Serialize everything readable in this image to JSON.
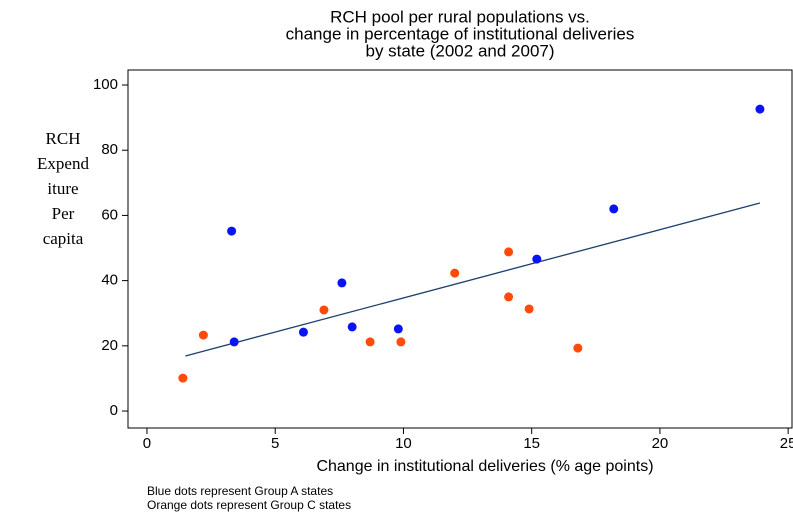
{
  "chart_data": {
    "type": "scatter",
    "title": [
      "RCH pool per rural populations vs.",
      "change in percentage of institutional deliveries",
      "by state (2002 and 2007)"
    ],
    "ylabel": [
      "RCH",
      "Expend",
      "iture",
      "Per",
      "capita"
    ],
    "xlabel": "Change in institutional deliveries (% age points)",
    "notes": [
      "Blue dots represent Group A states",
      "Orange dots represent Group C states"
    ],
    "xlim": [
      -0.74,
      25.15
    ],
    "ylim": [
      -5.2,
      104.6
    ],
    "xticks": [
      0,
      5,
      10,
      15,
      20,
      25
    ],
    "yticks": [
      0,
      20,
      40,
      60,
      80,
      100
    ],
    "grid": false,
    "series": [
      {
        "color": "#0a14f0",
        "x": [
          3.3,
          3.4,
          6.1,
          7.6,
          8.0,
          9.8,
          15.2,
          18.2,
          23.9
        ],
        "values": [
          55.2,
          21.2,
          24.2,
          39.3,
          25.8,
          25.2,
          46.6,
          62,
          92.6
        ]
      },
      {
        "color": "#ff4a0a",
        "x": [
          1.4,
          2.2,
          6.9,
          8.7,
          9.9,
          12.0,
          14.1,
          14.1,
          14.9,
          16.8
        ],
        "values": [
          10.1,
          23.3,
          31,
          21.2,
          21.2,
          42.3,
          48.8,
          35,
          31.3,
          19.3
        ]
      }
    ],
    "trend": {
      "color": "#1f3f6e",
      "x": [
        1.5,
        23.9
      ],
      "values": [
        16.9,
        63.8
      ]
    }
  }
}
